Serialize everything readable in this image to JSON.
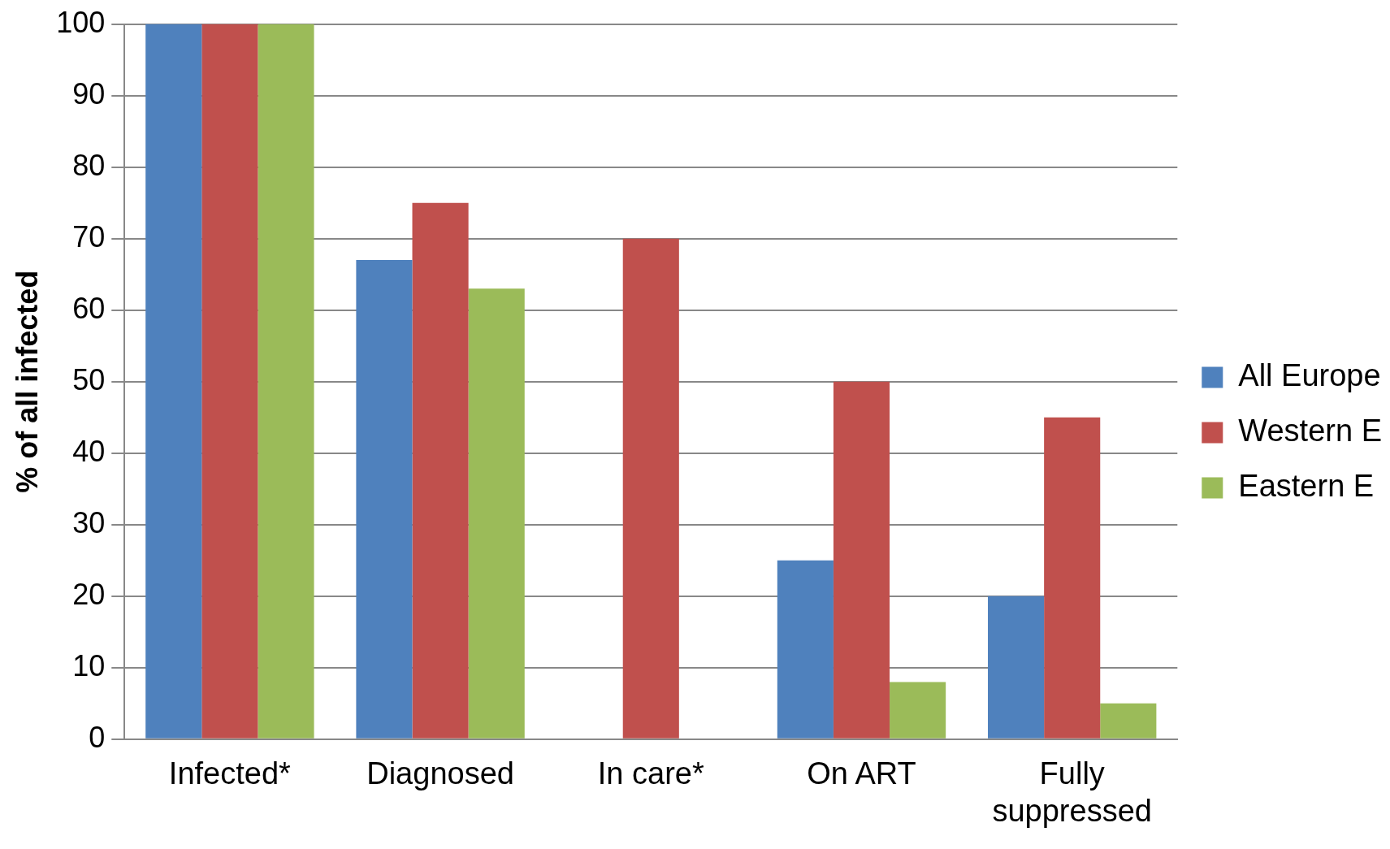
{
  "chart_data": {
    "type": "bar",
    "ylabel": "% of all infected",
    "categories": [
      "Infected*",
      "Diagnosed",
      "In care*",
      "On ART",
      "Fully suppressed"
    ],
    "series": [
      {
        "name": "All Europe",
        "color": "#4f81bd",
        "values": [
          100,
          67,
          null,
          25,
          20
        ]
      },
      {
        "name": "Western E",
        "color": "#c0504d",
        "values": [
          100,
          75,
          70,
          50,
          45
        ]
      },
      {
        "name": "Eastern E",
        "color": "#9bbb59",
        "values": [
          100,
          63,
          null,
          8,
          5
        ]
      }
    ],
    "ylim": [
      0,
      100
    ],
    "yticks": [
      0,
      10,
      20,
      30,
      40,
      50,
      60,
      70,
      80,
      90,
      100
    ],
    "grid": "y",
    "legend": "right"
  }
}
